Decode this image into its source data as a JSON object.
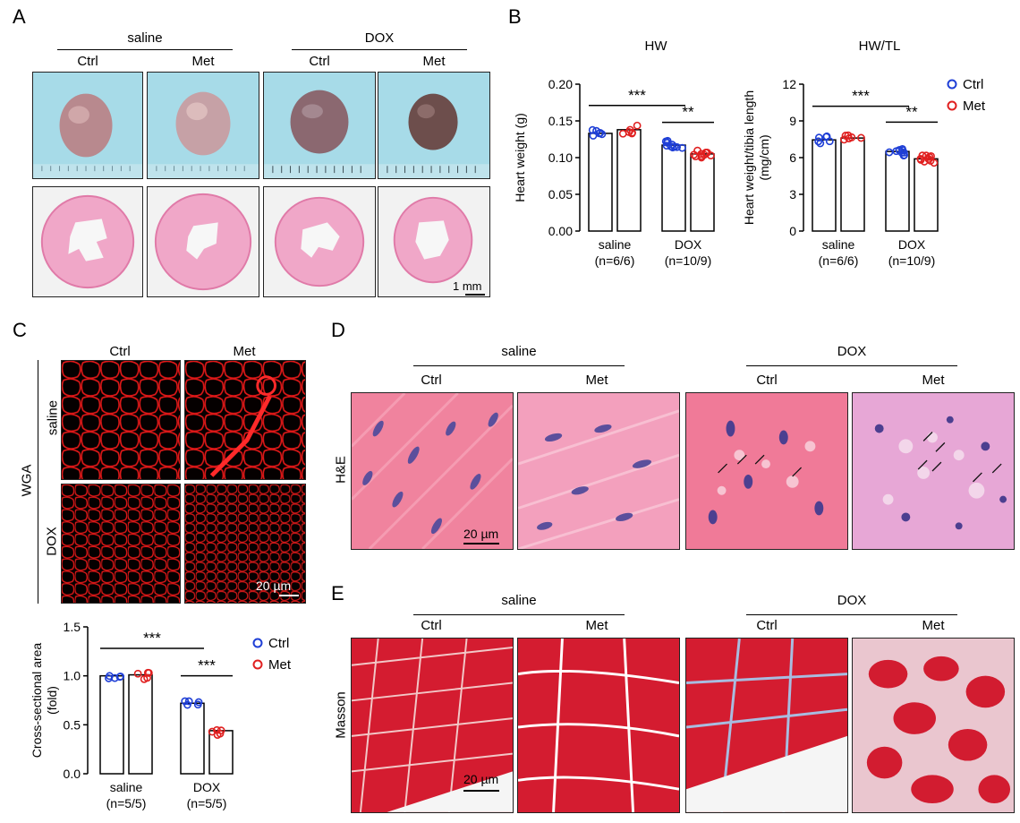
{
  "panels": {
    "A": "A",
    "B": "B",
    "C": "C",
    "D": "D",
    "E": "E"
  },
  "panelA": {
    "groups": [
      "saline",
      "DOX"
    ],
    "cols": [
      "Ctrl",
      "Met",
      "Ctrl",
      "Met"
    ],
    "scale": "1 mm"
  },
  "panelC": {
    "cols": [
      "Ctrl",
      "Met"
    ],
    "rows": [
      "saline",
      "DOX"
    ],
    "stain": "WGA",
    "scale": "20 µm"
  },
  "panelD": {
    "groups": [
      "saline",
      "DOX"
    ],
    "cols": [
      "Ctrl",
      "Met",
      "Ctrl",
      "Met"
    ],
    "stain": "H&E",
    "scale": "20 µm"
  },
  "panelE": {
    "groups": [
      "saline",
      "DOX"
    ],
    "cols": [
      "Ctrl",
      "Met",
      "Ctrl",
      "Met"
    ],
    "stain": "Masson",
    "scale": "20 µm"
  },
  "chart_data": [
    {
      "id": "hw",
      "type": "bar",
      "title": "HW",
      "ylabel": "Heart weight (g)",
      "ylim": [
        0,
        0.2
      ],
      "yticks": [
        "0.00",
        "0.05",
        "0.10",
        "0.15",
        "0.20"
      ],
      "categories": [
        "saline\n(n=6/6)",
        "DOX\n(n=10/9)"
      ],
      "cat_line1": [
        "saline",
        "DOX"
      ],
      "cat_line2": [
        "(n=6/6)",
        "(n=10/9)"
      ],
      "series": [
        {
          "name": "Ctrl",
          "values": [
            0.133,
            0.117
          ]
        },
        {
          "name": "Met",
          "values": [
            0.138,
            0.105
          ]
        }
      ],
      "significance": [
        {
          "label": "***",
          "from": "saline-Ctrl",
          "to": "DOX-Ctrl",
          "y": 0.171
        },
        {
          "label": "**",
          "from": "DOX-Ctrl",
          "to": "DOX-Met",
          "y": 0.148
        }
      ],
      "legend": "none"
    },
    {
      "id": "hwtl",
      "type": "bar",
      "title": "HW/TL",
      "ylabel": "Heart weight/tibia length",
      "ylabel2": "(mg/cm)",
      "ylim": [
        0,
        12
      ],
      "yticks": [
        "0",
        "3",
        "6",
        "9",
        "12"
      ],
      "cat_line1": [
        "saline",
        "DOX"
      ],
      "cat_line2": [
        "(n=6/6)",
        "(n=10/9)"
      ],
      "series": [
        {
          "name": "Ctrl",
          "values": [
            7.45,
            6.5
          ]
        },
        {
          "name": "Met",
          "values": [
            7.6,
            5.9
          ]
        }
      ],
      "significance": [
        {
          "label": "***",
          "from": "saline-Ctrl",
          "to": "DOX-Ctrl",
          "y": 10.2
        },
        {
          "label": "**",
          "from": "DOX-Ctrl",
          "to": "DOX-Met",
          "y": 8.9
        }
      ],
      "legend": "top-right"
    },
    {
      "id": "csa",
      "type": "bar",
      "title": "",
      "ylabel": "Cross-sectional area",
      "ylabel2": "(fold)",
      "ylim": [
        0,
        1.5
      ],
      "yticks": [
        "0.0",
        "0.5",
        "1.0",
        "1.5"
      ],
      "cat_line1": [
        "saline",
        "DOX"
      ],
      "cat_line2": [
        "(n=5/5)",
        "(n=5/5)"
      ],
      "series": [
        {
          "name": "Ctrl",
          "values": [
            1.0,
            0.72
          ]
        },
        {
          "name": "Met",
          "values": [
            1.01,
            0.44
          ]
        }
      ],
      "significance": [
        {
          "label": "***",
          "from": "saline-Ctrl",
          "to": "DOX-Ctrl",
          "y": 1.28
        },
        {
          "label": "***",
          "from": "DOX-Ctrl",
          "to": "DOX-Met",
          "y": 1.0
        }
      ],
      "legend": "top-right"
    }
  ],
  "legend_items": [
    {
      "name": "Ctrl",
      "color": "#1f3fd6"
    },
    {
      "name": "Met",
      "color": "#e02020"
    }
  ]
}
